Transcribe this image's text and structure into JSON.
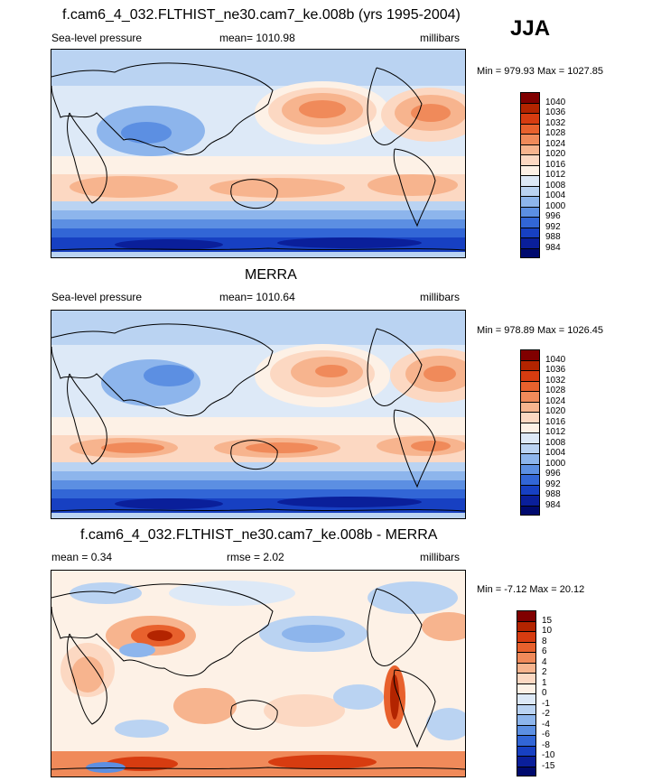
{
  "season": "JJA",
  "panels": [
    {
      "title": "f.cam6_4_032.FLTHIST_ne30.cam7_ke.008b (yrs 1995-2004)",
      "left_label": "Sea-level pressure",
      "center_label": "mean= 1010.98",
      "right_label": "millibars",
      "minmax": "Min = 979.93 Max = 1027.85",
      "colorbar": {
        "labels": [
          "1040",
          "1036",
          "1032",
          "1028",
          "1024",
          "1020",
          "1016",
          "1012",
          "1008",
          "1004",
          "1000",
          "996",
          "992",
          "988",
          "984"
        ],
        "colors": [
          "#800000",
          "#b32400",
          "#d73c10",
          "#e8612d",
          "#f08a5a",
          "#f7b48e",
          "#fcd8c2",
          "#fdf1e6",
          "#dde9f7",
          "#bad3f2",
          "#8db5ec",
          "#5c8fe2",
          "#3266d6",
          "#1740c2",
          "#0a1f9a",
          "#000a6e"
        ]
      }
    },
    {
      "title": "MERRA",
      "left_label": "Sea-level pressure",
      "center_label": "mean= 1010.64",
      "right_label": "millibars",
      "minmax": "Min = 978.89 Max = 1026.45",
      "colorbar": {
        "labels": [
          "1040",
          "1036",
          "1032",
          "1028",
          "1024",
          "1020",
          "1016",
          "1012",
          "1008",
          "1004",
          "1000",
          "996",
          "992",
          "988",
          "984"
        ],
        "colors": [
          "#800000",
          "#b32400",
          "#d73c10",
          "#e8612d",
          "#f08a5a",
          "#f7b48e",
          "#fcd8c2",
          "#fdf1e6",
          "#dde9f7",
          "#bad3f2",
          "#8db5ec",
          "#5c8fe2",
          "#3266d6",
          "#1740c2",
          "#0a1f9a",
          "#000a6e"
        ]
      }
    },
    {
      "title": "f.cam6_4_032.FLTHIST_ne30.cam7_ke.008b - MERRA",
      "left_label": "mean =   0.34",
      "center_label": "rmse =   2.02",
      "right_label": "millibars",
      "minmax": "Min =  -7.12 Max =  20.12",
      "colorbar": {
        "labels": [
          "15",
          "10",
          "8",
          "6",
          "4",
          "2",
          "1",
          "0",
          "-1",
          "-2",
          "-4",
          "-6",
          "-8",
          "-10",
          "-15"
        ],
        "colors": [
          "#800000",
          "#b32400",
          "#d73c10",
          "#e8612d",
          "#f08a5a",
          "#f7b48e",
          "#fcd8c2",
          "#fdf1e6",
          "#dde9f7",
          "#bad3f2",
          "#8db5ec",
          "#5c8fe2",
          "#3266d6",
          "#1740c2",
          "#0a1f9a",
          "#000a6e"
        ]
      }
    }
  ]
}
